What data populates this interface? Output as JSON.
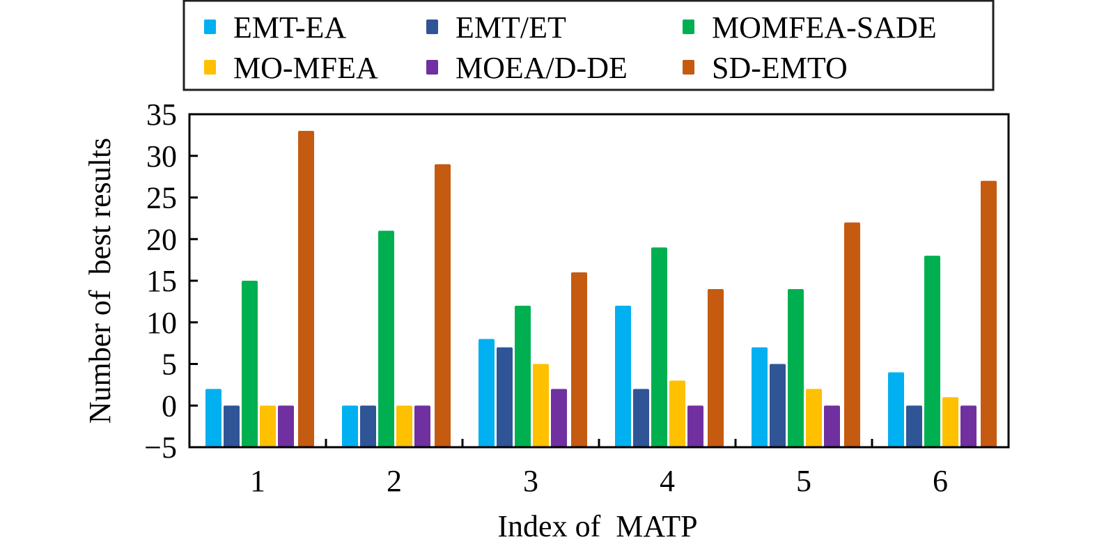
{
  "chart_data": {
    "type": "bar",
    "title": "",
    "xlabel": "Index of  MATP",
    "ylabel": "Number of  best results",
    "ylim": [
      -5,
      35
    ],
    "yticks": [
      -5,
      0,
      5,
      10,
      15,
      20,
      25,
      30,
      35
    ],
    "ytick_labels": [
      "−5",
      "0",
      "5",
      "10",
      "15",
      "20",
      "25",
      "30",
      "35"
    ],
    "categories": [
      "1",
      "2",
      "3",
      "4",
      "5",
      "6"
    ],
    "grid": false,
    "legend_position": "top",
    "series": [
      {
        "name": "EMT-EA",
        "color": "#00b0f0",
        "values": [
          2,
          0,
          8,
          12,
          7,
          4
        ]
      },
      {
        "name": "EMT/ET",
        "color": "#2f5597",
        "values": [
          0,
          0,
          7,
          2,
          5,
          0
        ]
      },
      {
        "name": "MOMFEA-SADE",
        "color": "#00b050",
        "values": [
          15,
          21,
          12,
          19,
          14,
          18
        ]
      },
      {
        "name": "MO-MFEA",
        "color": "#ffc000",
        "values": [
          0,
          0,
          5,
          3,
          2,
          1
        ]
      },
      {
        "name": "MOEA/D-DE",
        "color": "#7030a0",
        "values": [
          0,
          0,
          2,
          0,
          0,
          0
        ]
      },
      {
        "name": "SD-EMTO",
        "color": "#c55a11",
        "values": [
          33,
          29,
          16,
          14,
          22,
          27
        ]
      }
    ]
  }
}
